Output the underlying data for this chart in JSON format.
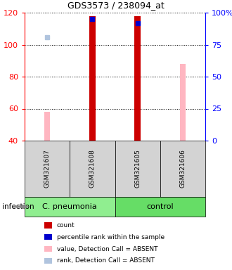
{
  "title": "GDS3573 / 238094_at",
  "samples": [
    "GSM321607",
    "GSM321608",
    "GSM321605",
    "GSM321606"
  ],
  "ylim_left": [
    40,
    120
  ],
  "ylim_right": [
    0,
    100
  ],
  "yticks_left": [
    40,
    60,
    80,
    100,
    120
  ],
  "yticks_right": [
    0,
    25,
    50,
    75,
    100
  ],
  "ytick_labels_right": [
    "0",
    "25",
    "50",
    "75",
    "100%"
  ],
  "count_color": "#CC0000",
  "rank_color": "#0000CC",
  "absent_value_color": "#FFB6C1",
  "absent_rank_color": "#B0C4DE",
  "count_values": [
    null,
    118,
    118,
    null
  ],
  "rank_values": [
    null,
    95,
    92,
    null
  ],
  "absent_value_values": [
    58,
    null,
    null,
    88
  ],
  "absent_rank_values": [
    null,
    null,
    null,
    null
  ],
  "absent_rank_values2": [
    81,
    null,
    null,
    null
  ],
  "group_info": [
    {
      "label": "C. pneumonia",
      "start": 0,
      "end": 1,
      "color": "#90EE90"
    },
    {
      "label": "control",
      "start": 2,
      "end": 3,
      "color": "#66DD66"
    }
  ],
  "legend_items": [
    {
      "color": "#CC0000",
      "label": "count"
    },
    {
      "color": "#0000CC",
      "label": "percentile rank within the sample"
    },
    {
      "color": "#FFB6C1",
      "label": "value, Detection Call = ABSENT"
    },
    {
      "color": "#B0C4DE",
      "label": "rank, Detection Call = ABSENT"
    }
  ],
  "fig_width": 3.3,
  "fig_height": 3.84,
  "dpi": 100
}
